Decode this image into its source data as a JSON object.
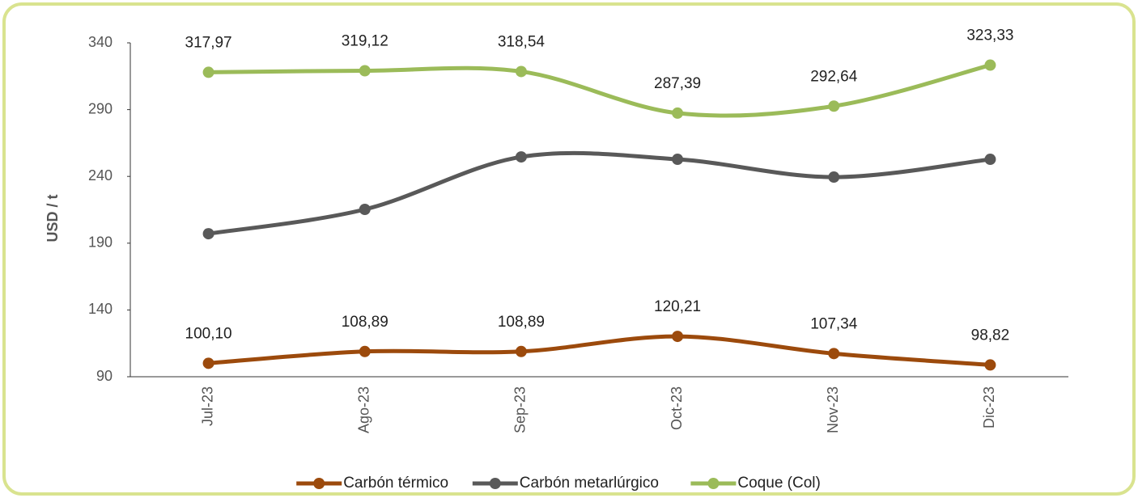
{
  "chart_data": {
    "type": "line",
    "y_label": "USD / t",
    "categories": [
      "Jul-23",
      "Ago-23",
      "Sep-23",
      "Oct-23",
      "Nov-23",
      "Dic-23"
    ],
    "ylim": [
      90,
      340
    ],
    "yticks": [
      90,
      140,
      190,
      240,
      290,
      340
    ],
    "legend": "bottom",
    "smooth": true,
    "series": [
      {
        "name": "Carbón térmico",
        "color": "#9c4a0c",
        "values": [
          100.1,
          108.89,
          108.89,
          120.21,
          107.34,
          98.82
        ],
        "value_labels": [
          "100,10",
          "108,89",
          "108,89",
          "120,21",
          "107,34",
          "98,82"
        ]
      },
      {
        "name": "Carbón metarlúrgico",
        "color": "#595959",
        "values": [
          197.1,
          215.3,
          254.6,
          252.8,
          239.5,
          252.8
        ]
      },
      {
        "name": "Coque (Col)",
        "color": "#9bbb59",
        "values": [
          317.97,
          319.12,
          318.54,
          287.39,
          292.64,
          323.33
        ],
        "value_labels": [
          "317,97",
          "319,12",
          "318,54",
          "287,39",
          "292,64",
          "323,33"
        ]
      }
    ]
  }
}
